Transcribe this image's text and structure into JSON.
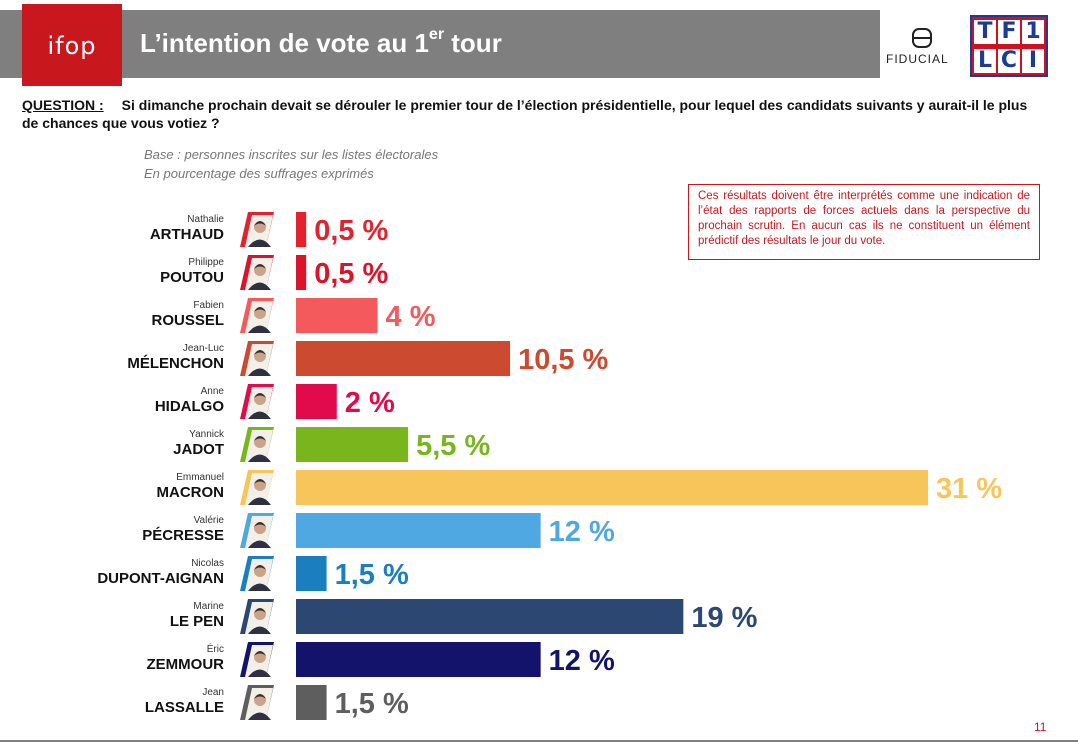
{
  "header": {
    "logo": "ifop",
    "title_main": "L’intention de vote au 1",
    "title_sup": "er",
    "title_end": " tour",
    "partner1": "FIDUCIAL",
    "partner2_row1": [
      "T",
      "F",
      "1"
    ],
    "partner2_row2": [
      "L",
      "C",
      "I"
    ]
  },
  "question": {
    "label": "QUESTION :",
    "text": "Si dimanche prochain devait se dérouler le premier tour de l’élection présidentielle, pour lequel des candidats suivants y aurait-il le plus de chances que vous votiez ?"
  },
  "base": {
    "line1": "Base : personnes inscrites sur les listes électorales",
    "line2": "En pourcentage des suffrages exprimés"
  },
  "note": "Ces résultats doivent être interprétés comme une indication de l’état des rapports de forces actuels dans la perspective du prochain scrutin. En aucun cas ils ne constituent un élément prédictif des résultats le jour du vote.",
  "chart_data": {
    "type": "bar",
    "orientation": "horizontal",
    "title": "",
    "xlabel": "",
    "ylabel": "",
    "xlim": [
      0,
      31
    ],
    "grid": false,
    "categories": [
      "ARTHAUD",
      "POUTOU",
      "ROUSSEL",
      "MÉLENCHON",
      "HIDALGO",
      "JADOT",
      "MACRON",
      "PÉCRESSE",
      "DUPONT-AIGNAN",
      "LE PEN",
      "ZEMMOUR",
      "LASSALLE"
    ],
    "first_names": [
      "Nathalie",
      "Philippe",
      "Fabien",
      "Jean-Luc",
      "Anne",
      "Yannick",
      "Emmanuel",
      "Valérie",
      "Nicolas",
      "Marine",
      "Éric",
      "Jean"
    ],
    "values": [
      0.5,
      0.5,
      4,
      10.5,
      2,
      5.5,
      31,
      12,
      1.5,
      19,
      12,
      1.5
    ],
    "labels": [
      "0,5 %",
      "0,5 %",
      "4 %",
      "10,5 %",
      "2 %",
      "5,5 %",
      "31 %",
      "12 %",
      "1,5 %",
      "19 %",
      "12 %",
      "1,5 %"
    ],
    "colors": [
      "#e2232e",
      "#d9142b",
      "#f45a5c",
      "#cb4a30",
      "#e10a4a",
      "#79b51c",
      "#f8c55a",
      "#50a8e2",
      "#1b7fbf",
      "#2b4772",
      "#13136b",
      "#5e5e5e"
    ]
  },
  "footer": {
    "page": "11"
  }
}
